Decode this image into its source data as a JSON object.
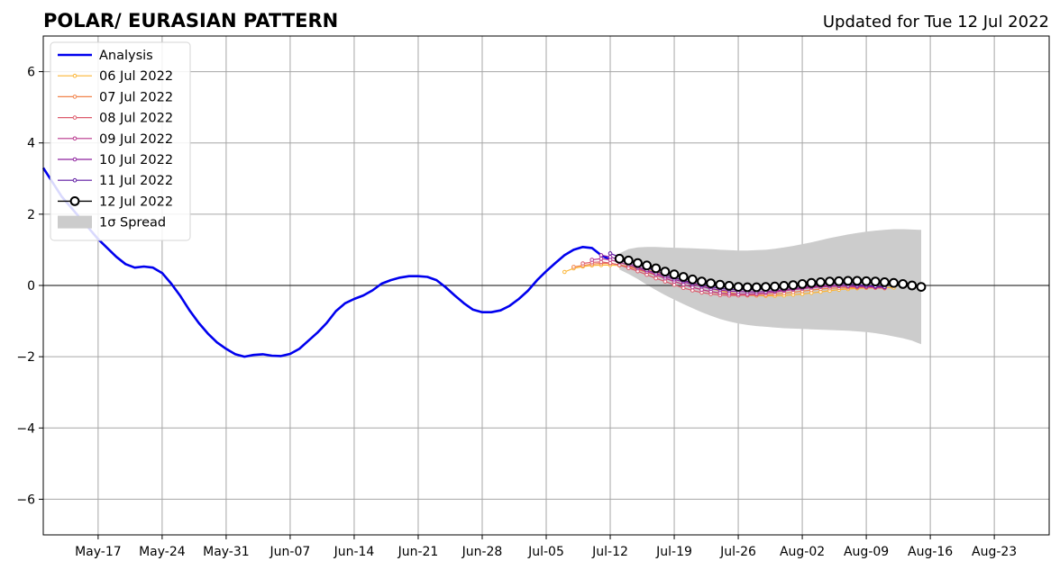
{
  "chart_data": {
    "type": "line",
    "title": "POLAR/ EURASIAN  PATTERN",
    "subtitle": "Updated for Tue 12 Jul 2022",
    "xlabel": "",
    "ylabel": "",
    "x_start": "2022-05-11",
    "x_end": "2022-08-29",
    "xlim": [
      "2022-05-11",
      "2022-08-29"
    ],
    "ylim": [
      -7,
      7
    ],
    "yticks": [
      -6,
      -4,
      -2,
      0,
      2,
      4,
      6
    ],
    "ytick_labels": [
      "−6",
      "−4",
      "−2",
      "0",
      "2",
      "4",
      "6"
    ],
    "xticks": [
      "2022-05-17",
      "2022-05-24",
      "2022-05-31",
      "2022-06-07",
      "2022-06-14",
      "2022-06-21",
      "2022-06-28",
      "2022-07-05",
      "2022-07-12",
      "2022-07-19",
      "2022-07-26",
      "2022-08-02",
      "2022-08-09",
      "2022-08-16",
      "2022-08-23"
    ],
    "xtick_labels": [
      "May-17",
      "May-24",
      "May-31",
      "Jun-07",
      "Jun-14",
      "Jun-21",
      "Jun-28",
      "Jul-05",
      "Jul-12",
      "Jul-19",
      "Jul-26",
      "Aug-02",
      "Aug-09",
      "Aug-16",
      "Aug-23"
    ],
    "grid": true,
    "zero_line": true,
    "legend_position": "upper-left",
    "legend": [
      {
        "label": "Analysis",
        "color": "#0000ee",
        "kind": "line"
      },
      {
        "label": "06 Jul 2022",
        "color": "#fbb535",
        "kind": "marker-line"
      },
      {
        "label": "07 Jul 2022",
        "color": "#f1834b",
        "kind": "marker-line"
      },
      {
        "label": "08 Jul 2022",
        "color": "#dd5b6c",
        "kind": "marker-line"
      },
      {
        "label": "09 Jul 2022",
        "color": "#b8358c",
        "kind": "marker-line"
      },
      {
        "label": "10 Jul 2022",
        "color": "#8e229e",
        "kind": "marker-line"
      },
      {
        "label": "11 Jul 2022",
        "color": "#5b16a0",
        "kind": "marker-line"
      },
      {
        "label": "12 Jul 2022",
        "color": "#000000",
        "kind": "big-marker-line"
      },
      {
        "label": "1σ Spread",
        "color": "#cccccc",
        "kind": "band"
      }
    ],
    "analysis": {
      "name": "Analysis",
      "color": "#0000ee",
      "x": [
        "2022-05-11",
        "2022-05-13",
        "2022-05-15",
        "2022-05-17",
        "2022-05-19",
        "2022-05-20",
        "2022-05-21",
        "2022-05-22",
        "2022-05-23",
        "2022-05-24",
        "2022-05-25",
        "2022-05-26",
        "2022-05-27",
        "2022-05-28",
        "2022-05-29",
        "2022-05-30",
        "2022-05-31",
        "2022-06-01",
        "2022-06-02",
        "2022-06-03",
        "2022-06-04",
        "2022-06-05",
        "2022-06-06",
        "2022-06-07",
        "2022-06-08",
        "2022-06-09",
        "2022-06-10",
        "2022-06-11",
        "2022-06-12",
        "2022-06-13",
        "2022-06-14",
        "2022-06-15",
        "2022-06-16",
        "2022-06-17",
        "2022-06-18",
        "2022-06-19",
        "2022-06-20",
        "2022-06-21",
        "2022-06-22",
        "2022-06-23",
        "2022-06-24",
        "2022-06-25",
        "2022-06-26",
        "2022-06-27",
        "2022-06-28",
        "2022-06-29",
        "2022-06-30",
        "2022-07-01",
        "2022-07-02",
        "2022-07-03",
        "2022-07-04",
        "2022-07-05",
        "2022-07-06",
        "2022-07-07",
        "2022-07-08",
        "2022-07-09",
        "2022-07-10",
        "2022-07-11",
        "2022-07-12"
      ],
      "y": [
        3.3,
        2.5,
        1.9,
        1.3,
        0.8,
        0.6,
        0.5,
        0.53,
        0.5,
        0.35,
        0.05,
        -0.3,
        -0.7,
        -1.05,
        -1.35,
        -1.6,
        -1.78,
        -1.93,
        -2.0,
        -1.95,
        -1.93,
        -1.97,
        -1.98,
        -1.92,
        -1.78,
        -1.55,
        -1.32,
        -1.05,
        -0.72,
        -0.5,
        -0.38,
        -0.28,
        -0.14,
        0.05,
        0.15,
        0.22,
        0.26,
        0.26,
        0.24,
        0.15,
        -0.05,
        -0.28,
        -0.5,
        -0.68,
        -0.75,
        -0.75,
        -0.7,
        -0.57,
        -0.38,
        -0.15,
        0.15,
        0.4,
        0.63,
        0.85,
        1.0,
        1.08,
        1.05,
        0.85,
        0.72
      ]
    },
    "forecasts": [
      {
        "name": "06 Jul 2022",
        "color": "#fbb535",
        "start": "2022-07-07",
        "y": [
          0.38,
          0.48,
          0.53,
          0.56,
          0.57,
          0.57,
          0.56,
          0.54,
          0.5,
          0.44,
          0.37,
          0.3,
          0.22,
          0.14,
          0.06,
          -0.02,
          -0.09,
          -0.15,
          -0.2,
          -0.24,
          -0.27,
          -0.28,
          -0.29,
          -0.29,
          -0.28,
          -0.26,
          -0.24,
          -0.21,
          -0.18,
          -0.15,
          -0.12,
          -0.1,
          -0.08,
          -0.07,
          -0.06,
          -0.06,
          -0.06
        ]
      },
      {
        "name": "07 Jul 2022",
        "color": "#f1834b",
        "start": "2022-07-08",
        "y": [
          0.52,
          0.56,
          0.6,
          0.62,
          0.62,
          0.58,
          0.52,
          0.45,
          0.37,
          0.29,
          0.2,
          0.11,
          0.03,
          -0.05,
          -0.12,
          -0.18,
          -0.22,
          -0.25,
          -0.27,
          -0.28,
          -0.28,
          -0.27,
          -0.25,
          -0.22,
          -0.19,
          -0.16,
          -0.13,
          -0.1,
          -0.08,
          -0.07,
          -0.06,
          -0.06,
          -0.06,
          -0.07,
          -0.08
        ]
      },
      {
        "name": "08 Jul 2022",
        "color": "#dd5b6c",
        "start": "2022-07-09",
        "y": [
          0.62,
          0.65,
          0.66,
          0.63,
          0.57,
          0.49,
          0.4,
          0.3,
          0.2,
          0.11,
          0.02,
          -0.07,
          -0.14,
          -0.2,
          -0.24,
          -0.27,
          -0.28,
          -0.28,
          -0.27,
          -0.25,
          -0.22,
          -0.19,
          -0.15,
          -0.11,
          -0.08,
          -0.05,
          -0.03,
          -0.02,
          -0.02,
          -0.03,
          -0.04,
          -0.05,
          -0.06,
          -0.07
        ]
      },
      {
        "name": "09 Jul 2022",
        "color": "#b8358c",
        "start": "2022-07-10",
        "y": [
          0.72,
          0.75,
          0.72,
          0.65,
          0.57,
          0.48,
          0.39,
          0.3,
          0.2,
          0.11,
          0.03,
          -0.05,
          -0.12,
          -0.17,
          -0.21,
          -0.23,
          -0.24,
          -0.24,
          -0.23,
          -0.21,
          -0.18,
          -0.15,
          -0.12,
          -0.09,
          -0.06,
          -0.04,
          -0.03,
          -0.02,
          -0.02,
          -0.03,
          -0.03,
          -0.04,
          -0.05
        ]
      },
      {
        "name": "10 Jul 2022",
        "color": "#8e229e",
        "start": "2022-07-11",
        "y": [
          0.85,
          0.8,
          0.72,
          0.62,
          0.52,
          0.43,
          0.34,
          0.25,
          0.17,
          0.1,
          0.03,
          -0.03,
          -0.09,
          -0.13,
          -0.16,
          -0.17,
          -0.18,
          -0.18,
          -0.17,
          -0.15,
          -0.12,
          -0.09,
          -0.06,
          -0.03,
          -0.01,
          0.0,
          0.0,
          -0.01,
          -0.02,
          -0.03,
          -0.04,
          -0.05
        ]
      },
      {
        "name": "11 Jul 2022",
        "color": "#5b16a0",
        "start": "2022-07-12",
        "y": [
          0.9,
          0.8,
          0.7,
          0.6,
          0.5,
          0.4,
          0.3,
          0.22,
          0.14,
          0.07,
          0.01,
          -0.04,
          -0.08,
          -0.11,
          -0.12,
          -0.12,
          -0.11,
          -0.09,
          -0.06,
          -0.03,
          0.0,
          0.03,
          0.05,
          0.06,
          0.06,
          0.05,
          0.04,
          0.02,
          0.0,
          -0.02,
          -0.04
        ]
      }
    ],
    "latest_forecast": {
      "name": "12 Jul 2022",
      "color": "#000000",
      "start": "2022-07-13",
      "y": [
        0.75,
        0.7,
        0.63,
        0.56,
        0.48,
        0.39,
        0.31,
        0.24,
        0.17,
        0.11,
        0.06,
        0.02,
        -0.01,
        -0.04,
        -0.05,
        -0.05,
        -0.04,
        -0.03,
        -0.01,
        0.01,
        0.04,
        0.07,
        0.09,
        0.11,
        0.12,
        0.13,
        0.13,
        0.12,
        0.11,
        0.09,
        0.07,
        0.04,
        0.0,
        -0.04
      ]
    },
    "spread": {
      "name": "1σ Spread",
      "color": "#cccccc",
      "start": "2022-07-13",
      "upper": [
        0.9,
        1.02,
        1.07,
        1.08,
        1.08,
        1.07,
        1.06,
        1.05,
        1.04,
        1.03,
        1.02,
        1.0,
        0.99,
        0.98,
        0.98,
        0.99,
        1.0,
        1.03,
        1.07,
        1.11,
        1.16,
        1.21,
        1.27,
        1.33,
        1.38,
        1.43,
        1.47,
        1.51,
        1.54,
        1.56,
        1.58,
        1.58,
        1.57,
        1.56
      ],
      "lower": [
        0.45,
        0.32,
        0.18,
        0.02,
        -0.13,
        -0.27,
        -0.4,
        -0.52,
        -0.64,
        -0.75,
        -0.85,
        -0.94,
        -1.01,
        -1.07,
        -1.11,
        -1.14,
        -1.16,
        -1.18,
        -1.2,
        -1.21,
        -1.22,
        -1.23,
        -1.24,
        -1.25,
        -1.26,
        -1.27,
        -1.29,
        -1.31,
        -1.34,
        -1.38,
        -1.43,
        -1.48,
        -1.55,
        -1.65
      ]
    }
  }
}
